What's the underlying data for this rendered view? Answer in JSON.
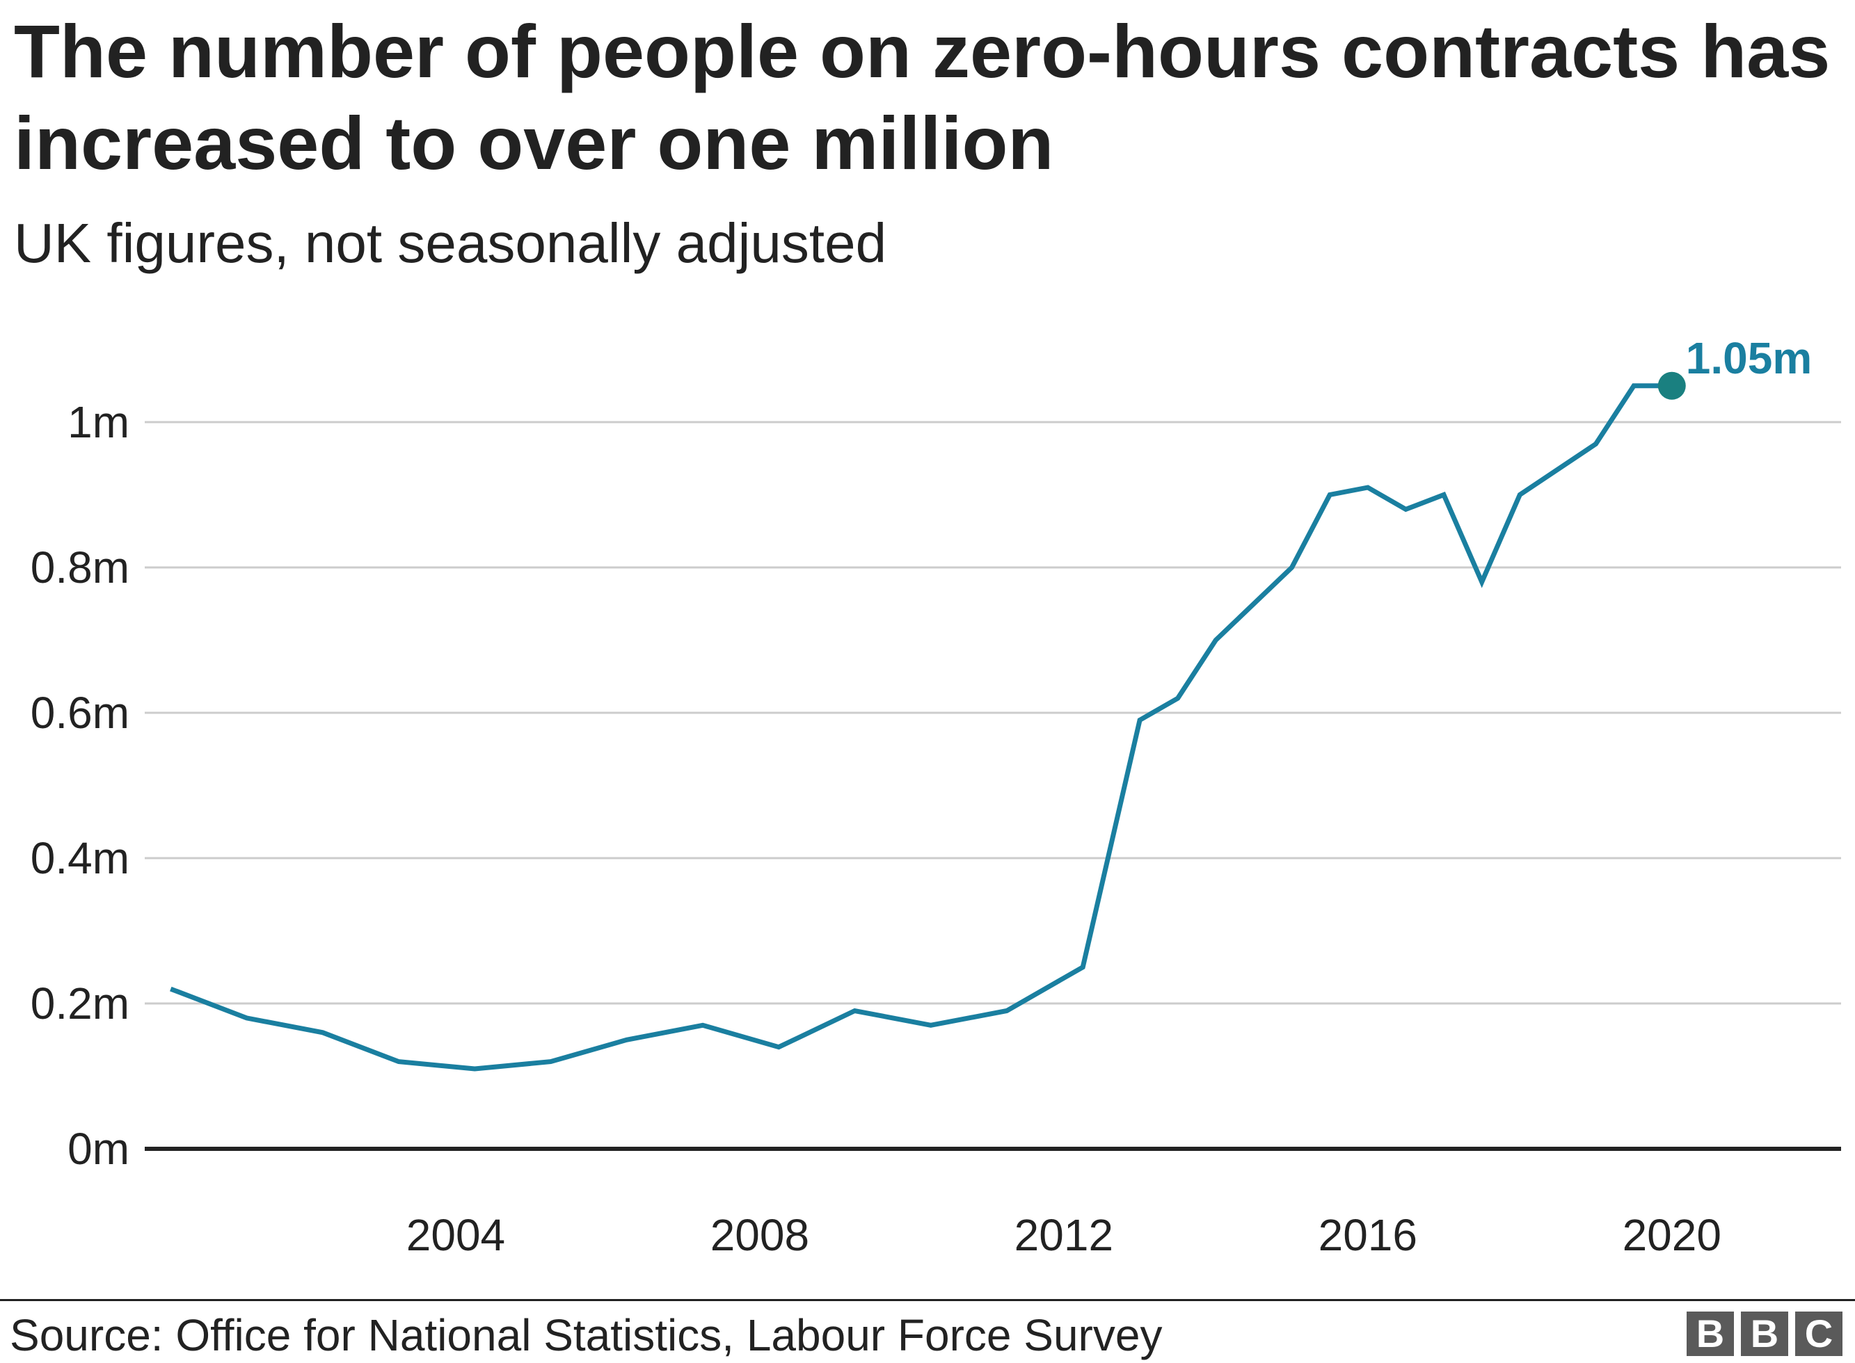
{
  "header": {
    "title": "The number of people on zero-hours contracts has increased to over one million",
    "subtitle": "UK figures, not seasonally adjusted"
  },
  "footer": {
    "source": "Source: Office for National Statistics, Labour Force Survey",
    "logo_letters": [
      "B",
      "B",
      "C"
    ]
  },
  "colors": {
    "line": "#1a7fa0",
    "endpoint_dot": "#1a8080",
    "gridline": "#cccccc",
    "baseline": "#222222",
    "text": "#222222"
  },
  "chart_data": {
    "type": "line",
    "title": "The number of people on zero-hours contracts has increased to over one million",
    "subtitle": "UK figures, not seasonally adjusted",
    "xlabel": "",
    "ylabel": "",
    "xlim": [
      2000.0,
      2022.3
    ],
    "ylim": [
      0,
      1.1
    ],
    "grid": true,
    "x_ticks": [
      2004,
      2008,
      2012,
      2016,
      2020
    ],
    "x_tick_labels": [
      "2004",
      "2008",
      "2012",
      "2016",
      "2020"
    ],
    "y_ticks": [
      0,
      0.2,
      0.4,
      0.6,
      0.8,
      1.0
    ],
    "y_tick_labels": [
      "0m",
      "0.2m",
      "0.4m",
      "0.6m",
      "0.8m",
      "1m"
    ],
    "series": [
      {
        "values_unit": "millions",
        "x": [
          2000.25,
          2001.25,
          2002.25,
          2003.25,
          2004.25,
          2005.25,
          2006.25,
          2007.25,
          2008.25,
          2009.25,
          2010.25,
          2011.25,
          2012.25,
          2013.0,
          2013.5,
          2014.0,
          2015.0,
          2015.5,
          2016.0,
          2016.5,
          2017.0,
          2017.5,
          2018.0,
          2019.0,
          2019.5,
          2020.0
        ],
        "values": [
          0.22,
          0.18,
          0.16,
          0.12,
          0.11,
          0.12,
          0.15,
          0.17,
          0.14,
          0.19,
          0.17,
          0.19,
          0.25,
          0.59,
          0.62,
          0.7,
          0.8,
          0.9,
          0.91,
          0.88,
          0.9,
          0.78,
          0.9,
          0.97,
          1.05,
          1.05
        ]
      }
    ],
    "annotations": [
      {
        "label": "1.05m",
        "x": 2020.0,
        "y": 1.05
      }
    ]
  }
}
